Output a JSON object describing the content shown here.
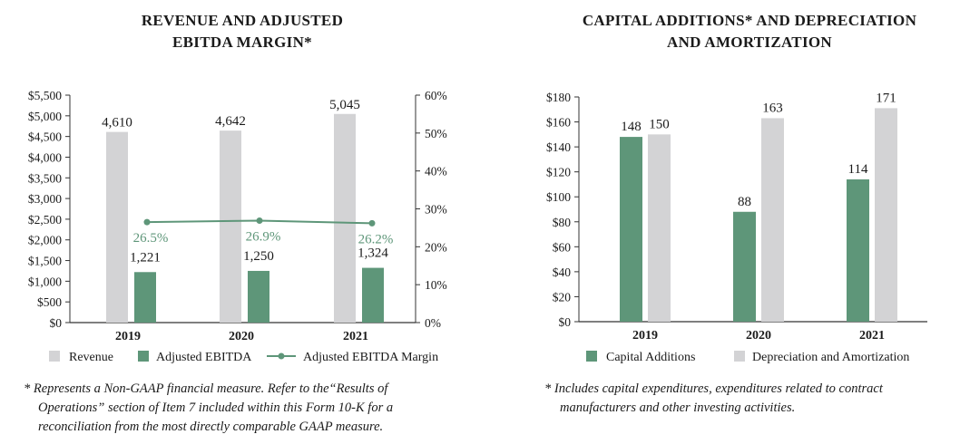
{
  "colors": {
    "green": "#5e9679",
    "gray": "#d3d3d5",
    "line": "#5e9679",
    "axis": "#333333"
  },
  "chart_data": [
    {
      "type": "bar",
      "title": [
        "REVENUE AND ADJUSTED",
        "EBITDA MARGIN*"
      ],
      "categories": [
        "2019",
        "2020",
        "2021"
      ],
      "ylim": [
        0,
        5500
      ],
      "yticks": [
        "$0",
        "$500",
        "$1,000",
        "$1,500",
        "$2,000",
        "$2,500",
        "$3,000",
        "$3,500",
        "$4,000",
        "$4,500",
        "$5,000",
        "$5,500"
      ],
      "y2lim": [
        0,
        60
      ],
      "y2ticks": [
        "0%",
        "10%",
        "20%",
        "30%",
        "40%",
        "50%",
        "60%"
      ],
      "series": [
        {
          "name": "Revenue",
          "values": [
            4610,
            4642,
            5045
          ],
          "labels": [
            "4,610",
            "4,642",
            "5,045"
          ]
        },
        {
          "name": "Adjusted EBITDA",
          "values": [
            1221,
            1250,
            1324
          ],
          "labels": [
            "1,221",
            "1,250",
            "1,324"
          ]
        },
        {
          "name": "Adjusted EBITDA Margin",
          "type": "line",
          "axis": "right",
          "values": [
            26.5,
            26.9,
            26.2
          ],
          "labels": [
            "26.5%",
            "26.9%",
            "26.2%"
          ]
        }
      ],
      "legend": [
        "Revenue",
        "Adjusted EBITDA",
        "Adjusted EBITDA Margin"
      ],
      "footnote": [
        "*  Represents a Non-GAAP financial measure. Refer to the“Results of",
        "Operations” section of Item 7 included within this Form 10-K for a",
        "reconciliation from the most directly comparable GAAP measure."
      ]
    },
    {
      "type": "bar",
      "title": [
        "CAPITAL ADDITIONS* AND DEPRECIATION",
        "AND AMORTIZATION"
      ],
      "categories": [
        "2019",
        "2020",
        "2021"
      ],
      "ylim": [
        0,
        180
      ],
      "yticks": [
        "$0",
        "$20",
        "$40",
        "$60",
        "$80",
        "$100",
        "$120",
        "$140",
        "$160",
        "$180"
      ],
      "series": [
        {
          "name": "Capital Additions",
          "values": [
            148,
            88,
            114
          ],
          "labels": [
            "148",
            "88",
            "114"
          ]
        },
        {
          "name": "Depreciation and Amortization",
          "values": [
            150,
            163,
            171
          ],
          "labels": [
            "150",
            "163",
            "171"
          ]
        }
      ],
      "legend": [
        "Capital Additions",
        "Depreciation and Amortization"
      ],
      "footnote": [
        "*  Includes capital expenditures, expenditures related to contract",
        "manufacturers and other investing activities."
      ]
    }
  ]
}
